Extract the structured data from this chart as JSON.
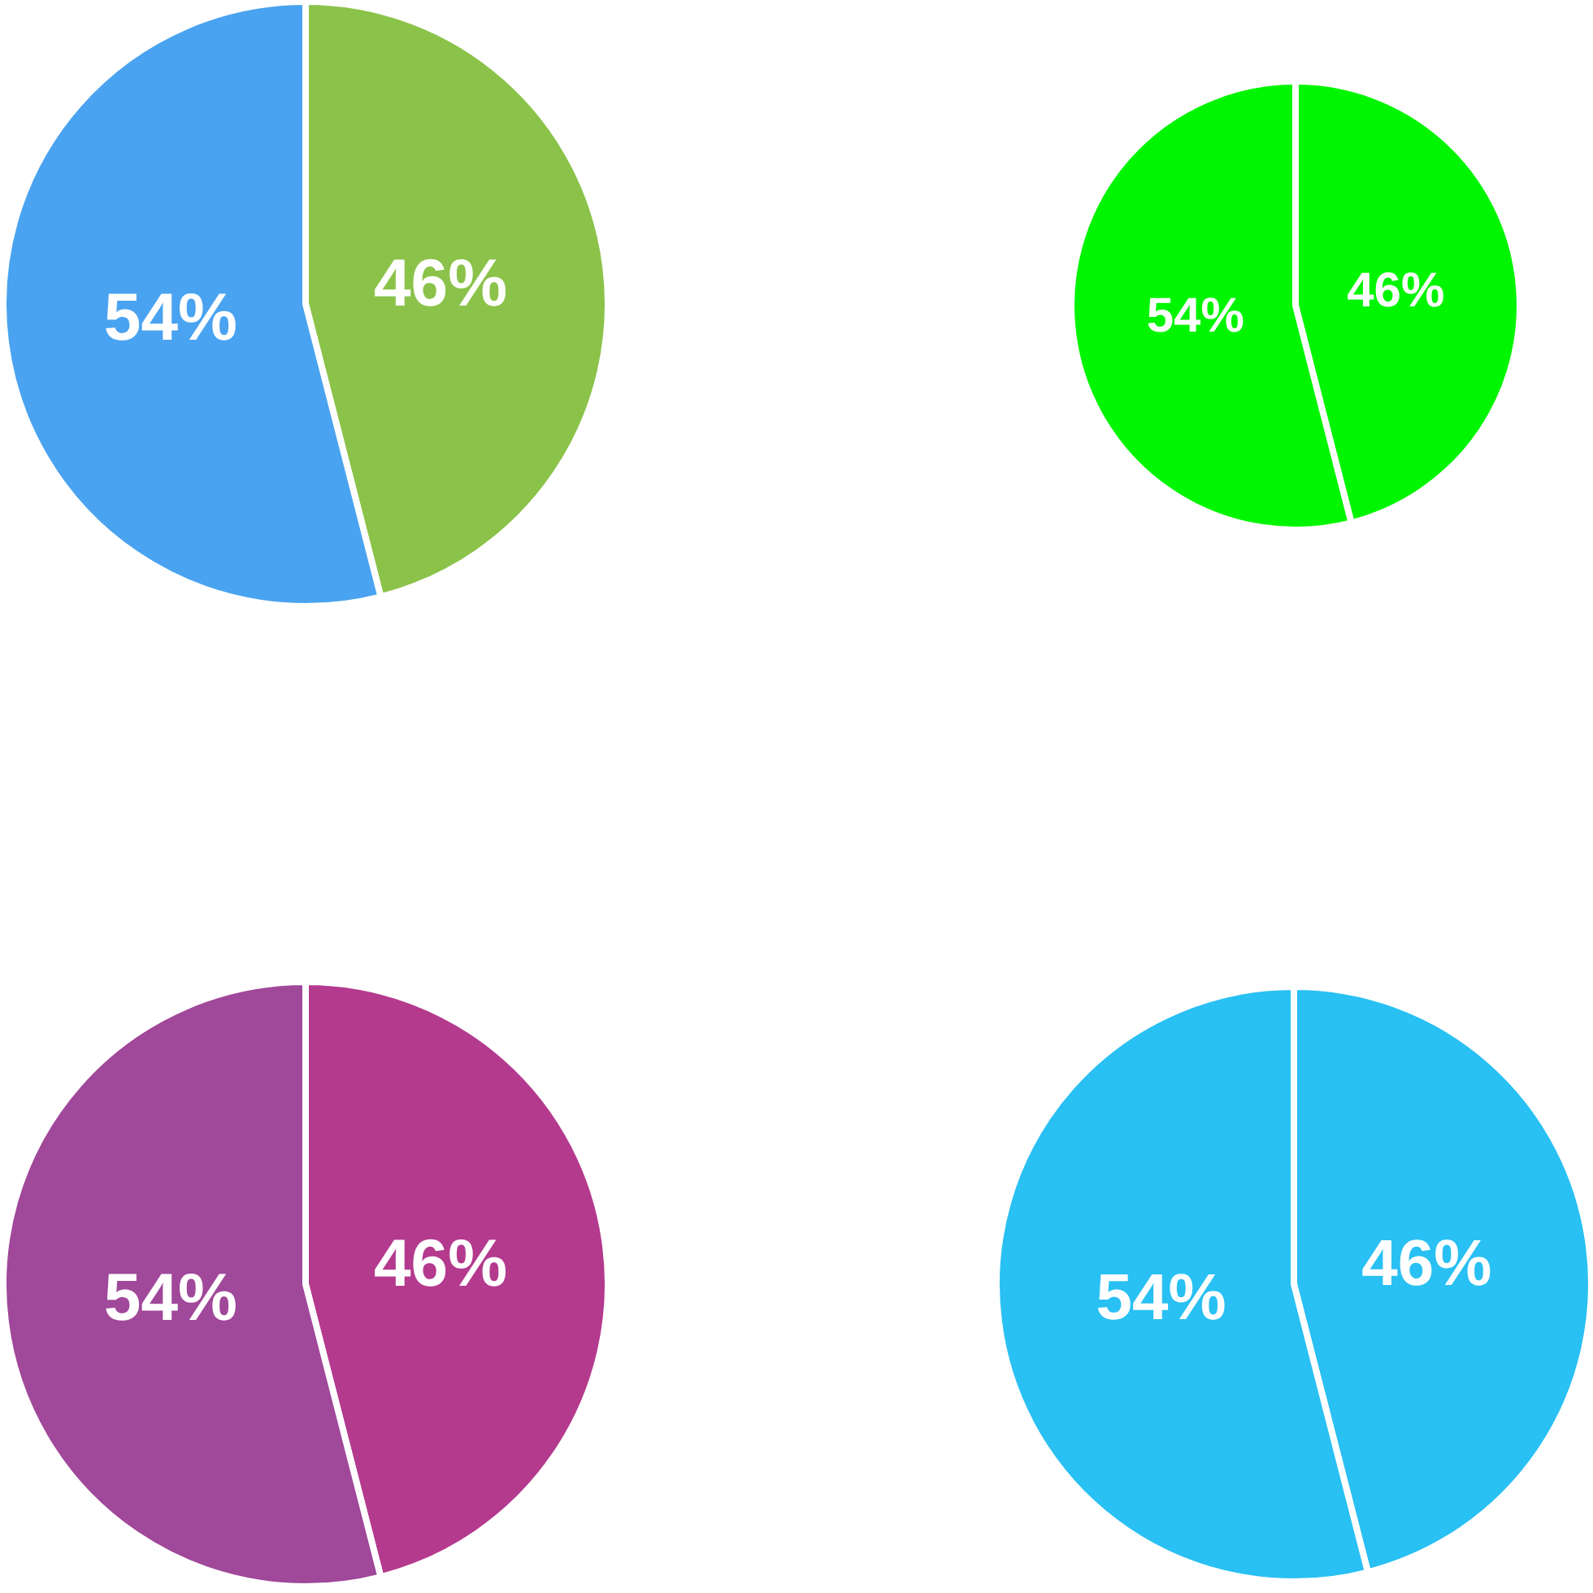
{
  "chart_data": [
    {
      "type": "pie",
      "categories": [
        null,
        null
      ],
      "values": [
        46,
        54
      ],
      "value_labels": [
        "46%",
        "54%"
      ],
      "colors": [
        "#8bc34a",
        "#4aa3f0"
      ],
      "legend": false
    },
    {
      "type": "pie",
      "categories": [
        null,
        null
      ],
      "values": [
        46,
        54
      ],
      "value_labels": [
        "46%",
        "54%"
      ],
      "colors": [
        "#00f500",
        "#00f500"
      ],
      "legend": false
    },
    {
      "type": "pie",
      "categories": [
        null,
        null
      ],
      "values": [
        46,
        54
      ],
      "value_labels": [
        "46%",
        "54%"
      ],
      "colors": [
        "#b43a8e",
        "#a0489a"
      ],
      "legend": false
    },
    {
      "type": "pie",
      "categories": [
        null,
        null
      ],
      "values": [
        46,
        54
      ],
      "value_labels": [
        "46%",
        "54%"
      ],
      "colors": [
        "#29c0f3",
        "#29c0f3"
      ],
      "legend": false
    }
  ]
}
